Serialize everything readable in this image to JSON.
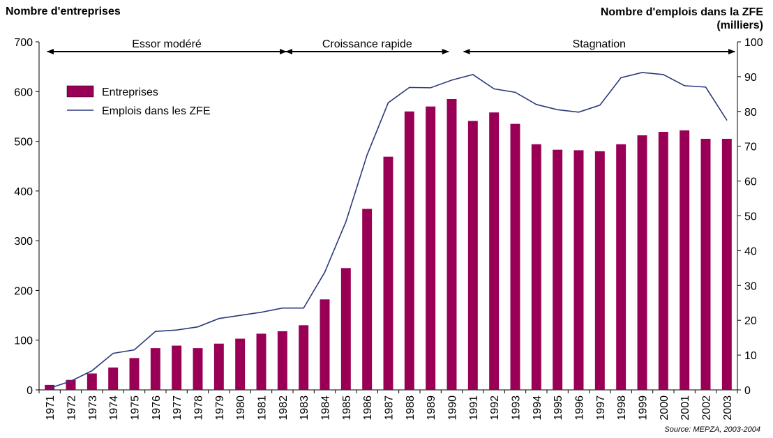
{
  "chart_data": {
    "type": "bar",
    "left_axis_title": "Nombre d'entreprises",
    "right_axis_title_line1": "Nombre d'emplois dans la ZFE",
    "right_axis_title_line2": "(milliers)",
    "ylim_left": [
      0,
      700
    ],
    "ylim_right": [
      0,
      100
    ],
    "yticks_left": [
      "0",
      "100",
      "200",
      "300",
      "400",
      "500",
      "600",
      "700"
    ],
    "yticks_right": [
      "0",
      "10",
      "20",
      "30",
      "40",
      "50",
      "60",
      "70",
      "80",
      "90",
      "100"
    ],
    "categories": [
      "1971",
      "1972",
      "1973",
      "1974",
      "1975",
      "1976",
      "1977",
      "1978",
      "1979",
      "1980",
      "1981",
      "1982",
      "1983",
      "1984",
      "1985",
      "1986",
      "1987",
      "1988",
      "1989",
      "1990",
      "1991",
      "1992",
      "1993",
      "1994",
      "1995",
      "1996",
      "1997",
      "1998",
      "1999",
      "2000",
      "2001",
      "2002",
      "2003"
    ],
    "series": [
      {
        "name": "Entreprises",
        "type": "bar",
        "axis": "left",
        "color": "#990055",
        "values": [
          10,
          20,
          33,
          45,
          64,
          84,
          89,
          84,
          93,
          103,
          113,
          118,
          130,
          182,
          245,
          364,
          469,
          560,
          570,
          585,
          541,
          558,
          535,
          494,
          483,
          482,
          480,
          494,
          512,
          519,
          522,
          505,
          505
        ]
      },
      {
        "name": "Emplois dans les ZFE",
        "type": "line",
        "axis": "right",
        "color": "#2b3a7a",
        "values": [
          0.5,
          2.5,
          5.5,
          10.5,
          11.5,
          16.8,
          17.2,
          18.1,
          20.5,
          21.4,
          22.3,
          23.5,
          23.5,
          33.8,
          48.3,
          67.5,
          82.5,
          86.9,
          86.8,
          89.0,
          90.6,
          86.5,
          85.5,
          82.0,
          80.5,
          79.8,
          81.8,
          89.7,
          91.2,
          90.6,
          87.4,
          87.0,
          77.5
        ]
      }
    ],
    "periods": [
      {
        "label": "Essor modéré",
        "from": "1971",
        "to": "1982"
      },
      {
        "label": "Croissance rapide",
        "from": "1983",
        "to": "1990"
      },
      {
        "label": "Stagnation",
        "from": "1990",
        "to": "2003"
      }
    ],
    "legend_position": "top-left",
    "grid": false,
    "source": "Source: MEPZA, 2003-2004"
  }
}
